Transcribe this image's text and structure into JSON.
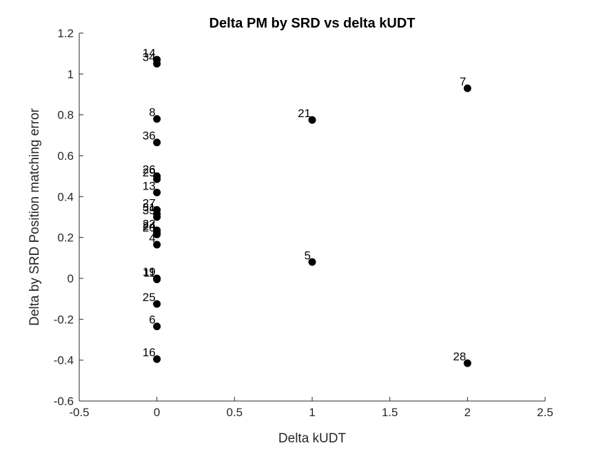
{
  "chart_data": {
    "type": "scatter",
    "title": "Delta PM by SRD vs delta kUDT",
    "xlabel": "Delta kUDT",
    "ylabel": "Delta by SRD Position matching error",
    "xlim": [
      -0.5,
      2.5
    ],
    "ylim": [
      -0.6,
      1.2
    ],
    "xticks": [
      -0.5,
      0,
      0.5,
      1,
      1.5,
      2,
      2.5
    ],
    "xtick_labels": [
      "-0.5",
      "0",
      "0.5",
      "1",
      "1.5",
      "2",
      "2.5"
    ],
    "yticks": [
      -0.6,
      -0.4,
      -0.2,
      0,
      0.2,
      0.4,
      0.6,
      0.8,
      1,
      1.2
    ],
    "ytick_labels": [
      "-0.6",
      "-0.4",
      "-0.2",
      "0",
      "0.2",
      "0.4",
      "0.6",
      "0.8",
      "1",
      "1.2"
    ],
    "grid": false,
    "marker_color": "#000000",
    "points": [
      {
        "label": "14",
        "x": 0,
        "y": 1.07
      },
      {
        "label": "34",
        "x": 0,
        "y": 1.05
      },
      {
        "label": "8",
        "x": 0,
        "y": 0.78
      },
      {
        "label": "36",
        "x": 0,
        "y": 0.665
      },
      {
        "label": "26",
        "x": 0,
        "y": 0.5
      },
      {
        "label": "29",
        "x": 0,
        "y": 0.485
      },
      {
        "label": "13",
        "x": 0,
        "y": 0.42
      },
      {
        "label": "27",
        "x": 0,
        "y": 0.335
      },
      {
        "label": "31",
        "x": 0,
        "y": 0.315
      },
      {
        "label": "35",
        "x": 0,
        "y": 0.3
      },
      {
        "label": "22",
        "x": 0,
        "y": 0.235
      },
      {
        "label": "24",
        "x": 0,
        "y": 0.225
      },
      {
        "label": "20",
        "x": 0,
        "y": 0.215
      },
      {
        "label": "4",
        "x": 0,
        "y": 0.165
      },
      {
        "label": "19",
        "x": 0,
        "y": 0.0
      },
      {
        "label": "11",
        "x": 0,
        "y": -0.005
      },
      {
        "label": "25",
        "x": 0,
        "y": -0.125
      },
      {
        "label": "6",
        "x": 0,
        "y": -0.235
      },
      {
        "label": "16",
        "x": 0,
        "y": -0.395
      },
      {
        "label": "21",
        "x": 1,
        "y": 0.775
      },
      {
        "label": "5",
        "x": 1,
        "y": 0.08
      },
      {
        "label": "7",
        "x": 2,
        "y": 0.93
      },
      {
        "label": "28",
        "x": 2,
        "y": -0.415
      }
    ]
  }
}
